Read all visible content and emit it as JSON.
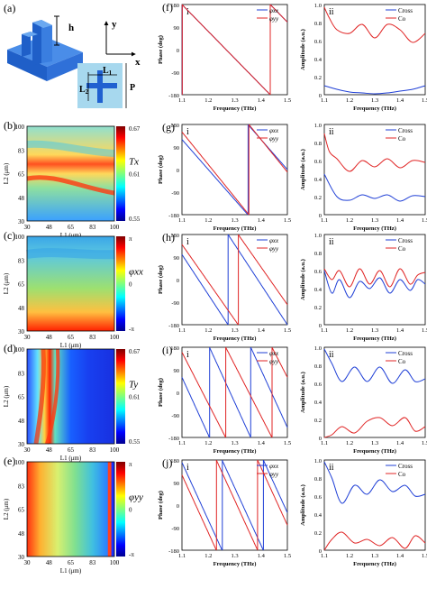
{
  "figure": {
    "panel_letters": [
      "(a)",
      "(b)",
      "(c)",
      "(d)",
      "(e)",
      "(f)",
      "(g)",
      "(h)",
      "(i)",
      "(j)"
    ],
    "roman": [
      "i",
      "ii"
    ],
    "schematic": {
      "height_label": "h",
      "y_axis_label": "y",
      "x_axis_label": "x",
      "L1_label": "L1",
      "L2_label": "L2",
      "P_label": "P",
      "base_color": "#3a7bd5",
      "inset_color": "#a7d8ee"
    },
    "colors": {
      "blue": "#1f3fd6",
      "red": "#e02424",
      "purple": "#7a2a8c"
    }
  },
  "chart_data": [
    {
      "id": "b",
      "type": "heatmap",
      "xlabel": "L1 (μm)",
      "ylabel": "L2 (μm)",
      "xticks": [
        "30",
        "48",
        "65",
        "83",
        "100"
      ],
      "yticks": [
        "30",
        "48",
        "65",
        "83",
        "100"
      ],
      "colorbar_title": "Tx",
      "colorbar_ticks": [
        "0.67",
        "0.61",
        "0.55"
      ]
    },
    {
      "id": "c",
      "type": "heatmap",
      "xlabel": "L1 (μm)",
      "ylabel": "L2 (μm)",
      "xticks": [
        "30",
        "48",
        "65",
        "83",
        "100"
      ],
      "yticks": [
        "30",
        "48",
        "65",
        "83",
        "100"
      ],
      "colorbar_title": "φxx",
      "colorbar_ticks": [
        "π",
        "0",
        "-π"
      ]
    },
    {
      "id": "d",
      "type": "heatmap",
      "xlabel": "L1 (μm)",
      "ylabel": "L2 (μm)",
      "xticks": [
        "30",
        "48",
        "65",
        "83",
        "100"
      ],
      "yticks": [
        "30",
        "48",
        "65",
        "83",
        "100"
      ],
      "colorbar_title": "Ty",
      "colorbar_ticks": [
        "0.67",
        "0.61",
        "0.55"
      ]
    },
    {
      "id": "e",
      "type": "heatmap",
      "xlabel": "L1 (μm)",
      "ylabel": "L2 (μm)",
      "xticks": [
        "30",
        "48",
        "65",
        "83",
        "100"
      ],
      "yticks": [
        "30",
        "48",
        "65",
        "83",
        "100"
      ],
      "colorbar_title": "φyy",
      "colorbar_ticks": [
        "π",
        "0",
        "-π"
      ]
    },
    {
      "id": "f-i",
      "type": "line",
      "xlabel": "Frequency (THz)",
      "ylabel": "Phase (deg)",
      "xlim": [
        1.1,
        1.5
      ],
      "ylim": [
        -180,
        180
      ],
      "xticks": [
        "1.1",
        "1.2",
        "1.3",
        "1.4",
        "1.5"
      ],
      "yticks": [
        "180",
        "90",
        "0",
        "-90",
        "-180"
      ],
      "series": [
        {
          "name": "φxx",
          "color": "#1f3fd6",
          "slope": -1075,
          "phase0": 180
        },
        {
          "name": "φyy",
          "color": "#e02424",
          "slope": -1075,
          "phase0": 180
        }
      ]
    },
    {
      "id": "f-ii",
      "type": "line",
      "xlabel": "Frequency (THz)",
      "ylabel": "Amplitude (a.u.)",
      "xlim": [
        1.1,
        1.5
      ],
      "ylim": [
        0,
        1
      ],
      "xticks": [
        "1.1",
        "1.2",
        "1.3",
        "1.4",
        "1.5"
      ],
      "yticks": [
        "1.0",
        "0.8",
        "0.6",
        "0.4",
        "0.2",
        "0"
      ],
      "series": [
        {
          "name": "Cross",
          "color": "#1f3fd6",
          "x": [
            1.1,
            1.15,
            1.2,
            1.25,
            1.3,
            1.35,
            1.4,
            1.45,
            1.5
          ],
          "y": [
            0.1,
            0.06,
            0.03,
            0.02,
            0.01,
            0.02,
            0.04,
            0.06,
            0.1
          ]
        },
        {
          "name": "Co",
          "color": "#e02424",
          "x": [
            1.1,
            1.12,
            1.15,
            1.2,
            1.25,
            1.3,
            1.35,
            1.4,
            1.45,
            1.5
          ],
          "y": [
            0.97,
            0.85,
            0.72,
            0.68,
            0.78,
            0.63,
            0.78,
            0.72,
            0.58,
            0.68
          ]
        }
      ]
    },
    {
      "id": "g-i",
      "type": "line",
      "xlabel": "Frequency (THz)",
      "ylabel": "Phase (deg)",
      "xlim": [
        1.1,
        1.5
      ],
      "ylim": [
        -180,
        180
      ],
      "xticks": [
        "1.1",
        "1.2",
        "1.3",
        "1.4",
        "1.5"
      ],
      "yticks": [
        "180",
        "90",
        "0",
        "-90",
        "-180"
      ],
      "series": [
        {
          "name": "φxx",
          "color": "#1f3fd6",
          "slope": -1200,
          "phase0": 120
        },
        {
          "name": "φyy",
          "color": "#e02424",
          "slope": -1300,
          "phase0": 150
        }
      ]
    },
    {
      "id": "g-ii",
      "type": "line",
      "xlabel": "Frequency (THz)",
      "ylabel": "Amplitude (a.u.)",
      "xlim": [
        1.1,
        1.5
      ],
      "ylim": [
        0,
        1
      ],
      "xticks": [
        "1.1",
        "1.2",
        "1.3",
        "1.4",
        "1.5"
      ],
      "yticks": [
        "1.0",
        "0.8",
        "0.6",
        "0.4",
        "0.2",
        "0"
      ],
      "series": [
        {
          "name": "Cross",
          "color": "#1f3fd6",
          "x": [
            1.1,
            1.15,
            1.2,
            1.25,
            1.3,
            1.35,
            1.4,
            1.45,
            1.5
          ],
          "y": [
            0.45,
            0.2,
            0.16,
            0.22,
            0.18,
            0.22,
            0.15,
            0.21,
            0.2
          ]
        },
        {
          "name": "Co",
          "color": "#e02424",
          "x": [
            1.1,
            1.12,
            1.15,
            1.2,
            1.25,
            1.3,
            1.35,
            1.4,
            1.45,
            1.5
          ],
          "y": [
            0.9,
            0.7,
            0.62,
            0.48,
            0.6,
            0.53,
            0.62,
            0.52,
            0.6,
            0.58
          ]
        }
      ]
    },
    {
      "id": "h-i",
      "type": "line",
      "xlabel": "Frequency (THz)",
      "ylabel": "Phase (deg)",
      "xlim": [
        1.1,
        1.5
      ],
      "ylim": [
        -180,
        180
      ],
      "xticks": [
        "1.1",
        "1.2",
        "1.3",
        "1.4",
        "1.5"
      ],
      "yticks": [
        "180",
        "90",
        "0",
        "-90",
        "-180"
      ],
      "series": [
        {
          "name": "φxx",
          "color": "#1f3fd6",
          "slope": -1600,
          "phase0": 100
        },
        {
          "name": "φyy",
          "color": "#e02424",
          "slope": -1500,
          "phase0": 140
        }
      ]
    },
    {
      "id": "h-ii",
      "type": "line",
      "xlabel": "Frequency (THz)",
      "ylabel": "Amplitude (a.u.)",
      "xlim": [
        1.1,
        1.5
      ],
      "ylim": [
        0,
        1
      ],
      "xticks": [
        "1.1",
        "1.2",
        "1.3",
        "1.4",
        "1.5"
      ],
      "yticks": [
        "1.0",
        "0.8",
        "0.6",
        "0.4",
        "0.2",
        "0"
      ],
      "series": [
        {
          "name": "Cross",
          "color": "#1f3fd6",
          "x": [
            1.1,
            1.13,
            1.16,
            1.2,
            1.24,
            1.28,
            1.32,
            1.36,
            1.4,
            1.44,
            1.47,
            1.5
          ],
          "y": [
            0.6,
            0.35,
            0.5,
            0.3,
            0.48,
            0.4,
            0.52,
            0.35,
            0.5,
            0.38,
            0.5,
            0.45
          ]
        },
        {
          "name": "Co",
          "color": "#e02424",
          "x": [
            1.1,
            1.13,
            1.16,
            1.2,
            1.24,
            1.28,
            1.32,
            1.36,
            1.4,
            1.44,
            1.47,
            1.5
          ],
          "y": [
            0.62,
            0.5,
            0.6,
            0.42,
            0.62,
            0.45,
            0.6,
            0.42,
            0.62,
            0.45,
            0.55,
            0.58
          ]
        }
      ]
    },
    {
      "id": "i-i",
      "type": "line",
      "xlabel": "Frequency (THz)",
      "ylabel": "Phase (deg)",
      "xlim": [
        1.1,
        1.5
      ],
      "ylim": [
        -180,
        180
      ],
      "xticks": [
        "1.1",
        "1.2",
        "1.3",
        "1.4",
        "1.5"
      ],
      "yticks": [
        "180",
        "90",
        "0",
        "-90",
        "-180"
      ],
      "series": [
        {
          "name": "φxx",
          "color": "#1f3fd6",
          "slope": -2300,
          "phase0": 60
        },
        {
          "name": "φyy",
          "color": "#e02424",
          "slope": -2050,
          "phase0": 160
        }
      ]
    },
    {
      "id": "i-ii",
      "type": "line",
      "xlabel": "Frequency (THz)",
      "ylabel": "Amplitude (a.u.)",
      "xlim": [
        1.1,
        1.5
      ],
      "ylim": [
        0,
        1
      ],
      "xticks": [
        "1.1",
        "1.2",
        "1.3",
        "1.4",
        "1.5"
      ],
      "yticks": [
        "1.0",
        "0.8",
        "0.6",
        "0.4",
        "0.2",
        "0"
      ],
      "series": [
        {
          "name": "Cross",
          "color": "#1f3fd6",
          "x": [
            1.1,
            1.13,
            1.17,
            1.22,
            1.27,
            1.32,
            1.37,
            1.42,
            1.46,
            1.5
          ],
          "y": [
            0.98,
            0.82,
            0.62,
            0.78,
            0.62,
            0.78,
            0.6,
            0.75,
            0.62,
            0.65
          ]
        },
        {
          "name": "Co",
          "color": "#e02424",
          "x": [
            1.1,
            1.13,
            1.17,
            1.22,
            1.27,
            1.32,
            1.37,
            1.42,
            1.46,
            1.5
          ],
          "y": [
            0.0,
            0.03,
            0.12,
            0.05,
            0.18,
            0.22,
            0.13,
            0.22,
            0.07,
            0.12
          ]
        }
      ]
    },
    {
      "id": "j-i",
      "type": "line",
      "xlabel": "Frequency (THz)",
      "ylabel": "Phase (deg)",
      "xlim": [
        1.1,
        1.5
      ],
      "ylim": [
        -180,
        180
      ],
      "xticks": [
        "1.1",
        "1.2",
        "1.3",
        "1.4",
        "1.5"
      ],
      "yticks": [
        "180",
        "90",
        "0",
        "-90",
        "-180"
      ],
      "series": [
        {
          "name": "φxx",
          "color": "#1f3fd6",
          "slope": -2300,
          "phase0": 170
        },
        {
          "name": "φyy",
          "color": "#e02424",
          "slope": -2300,
          "phase0": 120
        }
      ]
    },
    {
      "id": "j-ii",
      "type": "line",
      "xlabel": "Frequency (THz)",
      "ylabel": "Amplitude (a.u.)",
      "xlim": [
        1.1,
        1.5
      ],
      "ylim": [
        0,
        1
      ],
      "xticks": [
        "1.1",
        "1.2",
        "1.3",
        "1.4",
        "1.5"
      ],
      "yticks": [
        "1.0",
        "0.8",
        "0.6",
        "0.4",
        "0.2",
        "0"
      ],
      "series": [
        {
          "name": "Cross",
          "color": "#1f3fd6",
          "x": [
            1.1,
            1.13,
            1.17,
            1.22,
            1.27,
            1.32,
            1.37,
            1.42,
            1.46,
            1.5
          ],
          "y": [
            0.98,
            0.8,
            0.52,
            0.72,
            0.62,
            0.78,
            0.65,
            0.72,
            0.6,
            0.62
          ]
        },
        {
          "name": "Co",
          "color": "#e02424",
          "x": [
            1.1,
            1.13,
            1.17,
            1.22,
            1.27,
            1.32,
            1.37,
            1.42,
            1.46,
            1.5
          ],
          "y": [
            0.0,
            0.12,
            0.2,
            0.08,
            0.12,
            0.05,
            0.14,
            0.02,
            0.16,
            0.08
          ]
        }
      ]
    }
  ]
}
